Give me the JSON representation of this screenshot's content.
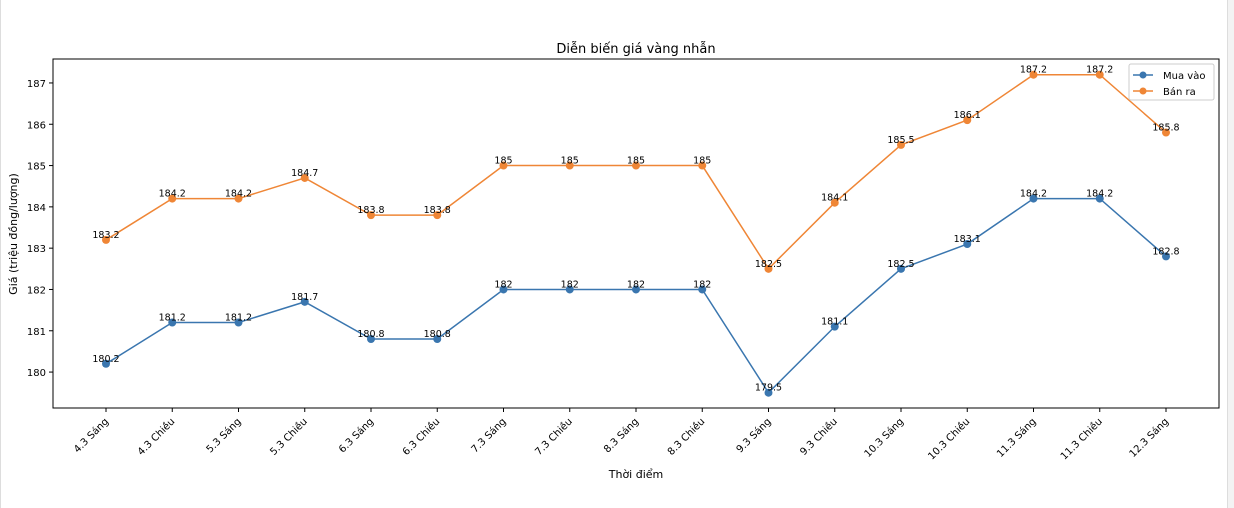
{
  "chart_data": {
    "type": "line",
    "title": "Diễn biến giá vàng nhẫn",
    "xlabel": "Thời điểm",
    "ylabel": "Giá (triệu đồng/lượng)",
    "categories": [
      "4.3 Sáng",
      "4.3 Chiều",
      "5.3 Sáng",
      "5.3 Chiều",
      "6.3 Sáng",
      "6.3 Chiều",
      "7.3 Sáng",
      "7.3 Chiều",
      "8.3 Sáng",
      "8.3 Chiều",
      "9.3 Sáng",
      "9.3 Chiều",
      "10.3 Sáng",
      "10.3 Chiều",
      "11.3 Sáng",
      "11.3 Chiều",
      "12.3 Sáng"
    ],
    "series": [
      {
        "name": "Mua vào",
        "color": "#3a76af",
        "values": [
          180.2,
          181.2,
          181.2,
          181.7,
          180.8,
          180.8,
          182,
          182,
          182,
          182,
          179.5,
          181.1,
          182.5,
          183.1,
          184.2,
          184.2,
          182.8
        ]
      },
      {
        "name": "Bán ra",
        "color": "#ef8636",
        "values": [
          183.2,
          184.2,
          184.2,
          184.7,
          183.8,
          183.8,
          185,
          185,
          185,
          185,
          182.5,
          184.1,
          185.5,
          186.1,
          187.2,
          187.2,
          185.8
        ]
      }
    ],
    "ylim": [
      179.13,
      187.58
    ],
    "yticks": [
      180,
      181,
      182,
      183,
      184,
      185,
      186,
      187
    ],
    "grid": false,
    "legend": "upper right",
    "data_labels": true
  }
}
